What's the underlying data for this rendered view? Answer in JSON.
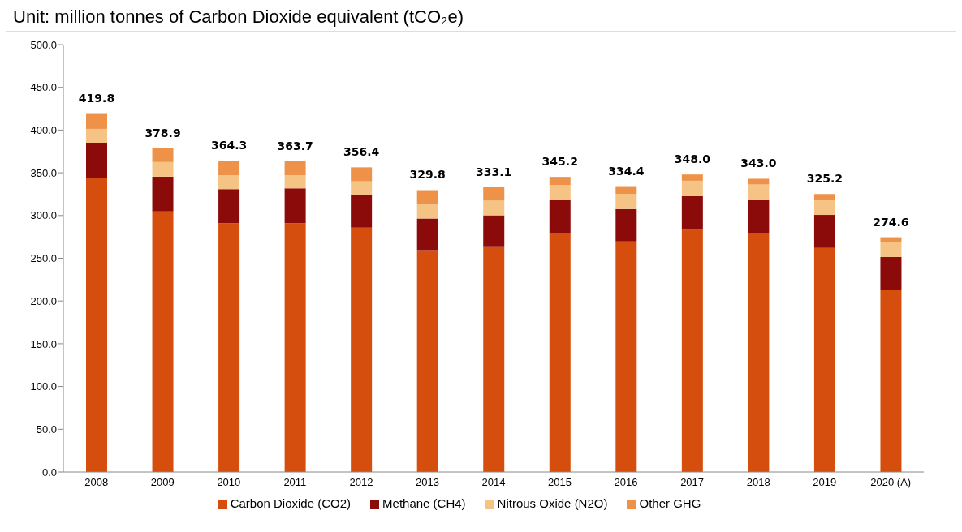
{
  "chart_data": {
    "type": "bar",
    "title": "Unit: million tonnes of Carbon Dioxide equivalent (tCO₂e)",
    "stacked": true,
    "categories": [
      "2008",
      "2009",
      "2010",
      "2011",
      "2012",
      "2013",
      "2014",
      "2015",
      "2016",
      "2017",
      "2018",
      "2019",
      "2020 (A)"
    ],
    "series": [
      {
        "name": "Carbon Dioxide (CO2)",
        "color": "#d64e0d",
        "values": [
          344.5,
          304.7,
          291.1,
          291.1,
          285.7,
          259.5,
          264.0,
          279.8,
          269.8,
          284.1,
          279.8,
          262.1,
          213.4
        ]
      },
      {
        "name": "Methane (CH4)",
        "color": "#8b0a0a",
        "values": [
          40.7,
          40.7,
          39.8,
          40.7,
          38.9,
          37.1,
          36.2,
          38.7,
          37.9,
          38.5,
          38.7,
          38.6,
          38.0
        ]
      },
      {
        "name": "Nitrous Oxide (N2O)",
        "color": "#f5c484",
        "values": [
          16.2,
          17.2,
          16.3,
          15.4,
          15.4,
          16.2,
          17.2,
          17.1,
          17.7,
          18.1,
          17.8,
          18.1,
          18.0
        ]
      },
      {
        "name": "Other GHG",
        "color": "#ee9249",
        "values": [
          18.4,
          16.3,
          17.1,
          16.5,
          16.4,
          17.0,
          15.7,
          9.6,
          9.0,
          7.3,
          6.7,
          6.4,
          5.2
        ]
      }
    ],
    "totals": [
      "419.8",
      "378.9",
      "364.3",
      "363.7",
      "356.4",
      "329.8",
      "333.1",
      "345.2",
      "334.4",
      "348.0",
      "343.0",
      "325.2",
      "274.6"
    ],
    "ylim": [
      0,
      500
    ],
    "yticks": [
      {
        "value": 0,
        "label": "0.0"
      },
      {
        "value": 50,
        "label": "50.0"
      },
      {
        "value": 100,
        "label": "100.0"
      },
      {
        "value": 150,
        "label": "150.0"
      },
      {
        "value": 200,
        "label": "200.0"
      },
      {
        "value": 250,
        "label": "250.0"
      },
      {
        "value": 300,
        "label": "300.0"
      },
      {
        "value": 350,
        "label": "350.0"
      },
      {
        "value": 400,
        "label": "400.0"
      },
      {
        "value": 450,
        "label": "450.0"
      },
      {
        "value": 500,
        "label": "500.0"
      }
    ],
    "grid": false,
    "legend": "bottom"
  }
}
